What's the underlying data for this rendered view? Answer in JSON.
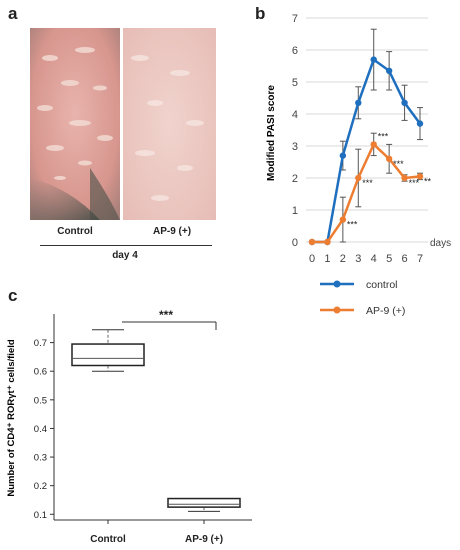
{
  "panels": {
    "a": {
      "letter": "a",
      "labels": [
        "Control",
        "AP-9 (+)"
      ],
      "caption": "day 4"
    },
    "b": {
      "letter": "b"
    },
    "c": {
      "letter": "c"
    }
  },
  "chart_data": [
    {
      "type": "line",
      "panel": "b",
      "ylabel": "Modified PASI score",
      "xlabel": "days",
      "x": [
        0,
        1,
        2,
        3,
        4,
        5,
        6,
        7
      ],
      "ylim": [
        0,
        7
      ],
      "yticks": [
        0,
        1,
        2,
        3,
        4,
        5,
        6,
        7
      ],
      "grid": "horizontal",
      "legend": "bottom",
      "series": [
        {
          "name": "control",
          "color": "#1f6fbf",
          "values": [
            0,
            0,
            2.7,
            4.35,
            5.7,
            5.35,
            4.35,
            3.7
          ],
          "errors": [
            0,
            0,
            0.45,
            0.5,
            0.95,
            0.6,
            0.55,
            0.5
          ]
        },
        {
          "name": "AP-9 (+)",
          "color": "#ed7d31",
          "values": [
            0,
            0,
            0.7,
            2.0,
            3.05,
            2.6,
            2.0,
            2.05
          ],
          "errors": [
            0,
            0,
            0.7,
            0.9,
            0.35,
            0.45,
            0.1,
            0.1
          ],
          "annotations": [
            "",
            "",
            "***",
            "***",
            "***",
            "***",
            "***",
            "**"
          ]
        }
      ]
    },
    {
      "type": "box",
      "panel": "c",
      "ylabel": "Number of CD4⁺ RORγt⁺ cells/field",
      "categories": [
        "Control",
        "AP-9 (+)"
      ],
      "ylim": [
        0.08,
        0.8
      ],
      "yticks": [
        0.1,
        0.2,
        0.3,
        0.4,
        0.5,
        0.6,
        0.7
      ],
      "boxes": [
        {
          "min": 0.6,
          "q1": 0.62,
          "median": 0.645,
          "q3": 0.695,
          "max": 0.745
        },
        {
          "min": 0.11,
          "q1": 0.125,
          "median": 0.135,
          "q3": 0.155,
          "max": 0.155
        }
      ],
      "significance": "***"
    }
  ]
}
